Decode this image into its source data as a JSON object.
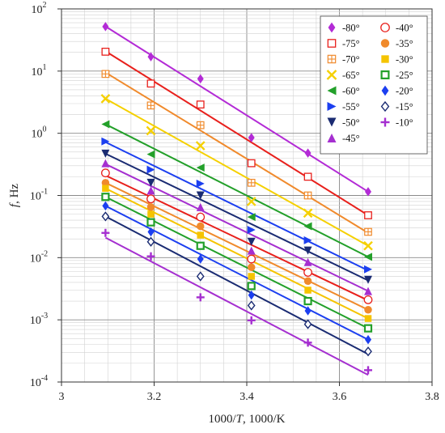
{
  "chart_data": {
    "type": "scatter",
    "title": "",
    "xlabel": [
      "1000/",
      "T",
      ", 1000/K"
    ],
    "ylabel": [
      "f",
      ", Hz"
    ],
    "xlim": [
      3.0,
      3.8
    ],
    "ylim_log10": [
      -4,
      2
    ],
    "y_scale": "log",
    "grid": true,
    "legend_position": "top-right",
    "x_ticks": [
      "3",
      "3.2",
      "3.4",
      "3.6",
      "3.8"
    ],
    "x_tick_values": [
      3.0,
      3.2,
      3.4,
      3.6,
      3.8
    ],
    "y_tick_exponents": [
      -4,
      -3,
      -2,
      -1,
      0,
      1,
      2
    ],
    "y_tick_base": "10",
    "x_points": [
      3.095,
      3.193,
      3.3,
      3.41,
      3.532,
      3.662
    ],
    "series": [
      {
        "name": "-80°",
        "marker": "diamond",
        "color": "#b32bd6",
        "fit": [
          52.3,
          0.115
        ],
        "values": [
          52,
          17,
          7.5,
          0.85,
          0.48,
          0.115
        ]
      },
      {
        "name": "-75°",
        "marker": "square-open",
        "color": "#e8201c",
        "fit": [
          20.9,
          0.048
        ],
        "values": [
          20.5,
          6.3,
          2.9,
          0.33,
          0.2,
          0.048
        ]
      },
      {
        "name": "-70°",
        "marker": "square-cross",
        "color": "#f08a2c",
        "fit": [
          9.5,
          0.025
        ],
        "values": [
          9.0,
          2.8,
          1.35,
          0.16,
          0.1,
          0.026
        ]
      },
      {
        "name": "-65°",
        "marker": "x",
        "color": "#f5d000",
        "fit": [
          3.6,
          0.0155
        ],
        "values": [
          3.6,
          1.1,
          0.63,
          0.08,
          0.052,
          0.0155
        ]
      },
      {
        "name": "-60°",
        "marker": "triangle-left",
        "color": "#23a02a",
        "fit": [
          1.4,
          0.0103
        ],
        "values": [
          1.4,
          0.46,
          0.28,
          0.045,
          0.032,
          0.0103
        ]
      },
      {
        "name": "-55°",
        "marker": "triangle-right",
        "color": "#1c3ff0",
        "fit": [
          0.72,
          0.0062
        ],
        "values": [
          0.74,
          0.26,
          0.155,
          0.028,
          0.019,
          0.0065
        ]
      },
      {
        "name": "-50°",
        "marker": "triangle-down",
        "color": "#1a2b72",
        "fit": [
          0.47,
          0.0043
        ],
        "values": [
          0.47,
          0.16,
          0.1,
          0.018,
          0.013,
          0.0044
        ]
      },
      {
        "name": "-45°",
        "marker": "triangle-up",
        "color": "#a52fd0",
        "fit": [
          0.32,
          0.0029
        ],
        "values": [
          0.33,
          0.12,
          0.065,
          0.013,
          0.0085,
          0.0029
        ]
      },
      {
        "name": "-40°",
        "marker": "circle-open",
        "color": "#e8201c",
        "fit": [
          0.21,
          0.00205
        ],
        "values": [
          0.23,
          0.088,
          0.045,
          0.0095,
          0.0058,
          0.0021
        ]
      },
      {
        "name": "-35°",
        "marker": "circle",
        "color": "#f08a2c",
        "fit": [
          0.16,
          0.00145
        ],
        "values": [
          0.16,
          0.065,
          0.032,
          0.007,
          0.0042,
          0.00145
        ]
      },
      {
        "name": "-30°",
        "marker": "square",
        "color": "#f5c400",
        "fit": [
          0.13,
          0.00105
        ],
        "values": [
          0.13,
          0.05,
          0.023,
          0.005,
          0.003,
          0.00105
        ]
      },
      {
        "name": "-25°",
        "marker": "square-dot",
        "color": "#23a02a",
        "fit": [
          0.095,
          0.00073
        ],
        "values": [
          0.095,
          0.037,
          0.0155,
          0.0035,
          0.002,
          0.00073
        ]
      },
      {
        "name": "-20°",
        "marker": "diamond",
        "color": "#1c3ff0",
        "fit": [
          0.068,
          0.00048
        ],
        "values": [
          0.068,
          0.026,
          0.0095,
          0.0025,
          0.0014,
          0.00048
        ]
      },
      {
        "name": "-15°",
        "marker": "diamond-open",
        "color": "#1a2b72",
        "fit": [
          0.046,
          0.00028
        ],
        "values": [
          0.046,
          0.018,
          0.005,
          0.0017,
          0.00085,
          0.00031
        ]
      },
      {
        "name": "-10°",
        "marker": "plus",
        "color": "#a52fd0",
        "fit": [
          0.021,
          0.00013
        ],
        "values": [
          0.025,
          0.0105,
          0.0023,
          0.00098,
          0.00043,
          0.000155
        ]
      }
    ]
  }
}
